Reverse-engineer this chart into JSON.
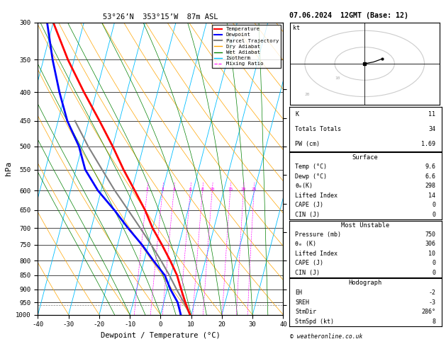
{
  "title_left": "53°26’N  353°15’W  87m ASL",
  "title_right": "07.06.2024  12GMT (Base: 12)",
  "xlabel": "Dewpoint / Temperature (°C)",
  "ylabel_left": "hPa",
  "temp_color": "#ff0000",
  "dewp_color": "#0000ff",
  "parcel_color": "#808080",
  "dry_adiabat_color": "#ffa500",
  "wet_adiabat_color": "#008000",
  "isotherm_color": "#00bfff",
  "mixing_ratio_color": "#ff00ff",
  "pressure_levels": [
    300,
    350,
    400,
    450,
    500,
    550,
    600,
    650,
    700,
    750,
    800,
    850,
    900,
    950,
    1000
  ],
  "xlim": [
    -40,
    40
  ],
  "temp_profile": {
    "pressure": [
      1000,
      950,
      900,
      850,
      800,
      750,
      700,
      650,
      600,
      550,
      500,
      450,
      400,
      350,
      300
    ],
    "temperature": [
      9.6,
      7.0,
      4.5,
      2.0,
      -1.5,
      -5.5,
      -10.0,
      -14.0,
      -19.0,
      -24.5,
      -30.0,
      -36.5,
      -44.0,
      -52.0,
      -60.0
    ]
  },
  "dewp_profile": {
    "pressure": [
      1000,
      950,
      900,
      850,
      800,
      750,
      700,
      650,
      600,
      550,
      500,
      450,
      400,
      350,
      300
    ],
    "dewpoint": [
      6.6,
      4.5,
      1.0,
      -2.0,
      -7.0,
      -12.0,
      -18.0,
      -24.0,
      -31.0,
      -37.0,
      -41.0,
      -47.0,
      -52.0,
      -57.0,
      -62.0
    ]
  },
  "parcel_profile": {
    "pressure": [
      1000,
      950,
      900,
      850,
      800,
      750,
      700,
      650,
      600,
      550,
      500,
      450
    ],
    "temperature": [
      9.6,
      6.5,
      3.0,
      -0.5,
      -4.5,
      -9.0,
      -14.0,
      -19.5,
      -25.5,
      -31.5,
      -38.0,
      -44.5
    ]
  },
  "mixing_ratio_lines": [
    2,
    3,
    4,
    6,
    8,
    10,
    15,
    20,
    25
  ],
  "lcl_pressure": 960,
  "stats": {
    "K": 11,
    "Totals_Totals": 34,
    "PW_cm": "1.69",
    "Surface_Temp": "9.6",
    "Surface_Dewp": "6.6",
    "theta_e_K": 298,
    "Lifted_Index": 14,
    "CAPE_J": 0,
    "CIN_J": 0,
    "MU_Pressure_mb": 750,
    "MU_theta_e_K": 306,
    "MU_Lifted_Index": 10,
    "MU_CAPE_J": 0,
    "MU_CIN_J": 0,
    "EH": -2,
    "SREH": -3,
    "StmDir": "286°",
    "StmSpd_kt": 8
  }
}
